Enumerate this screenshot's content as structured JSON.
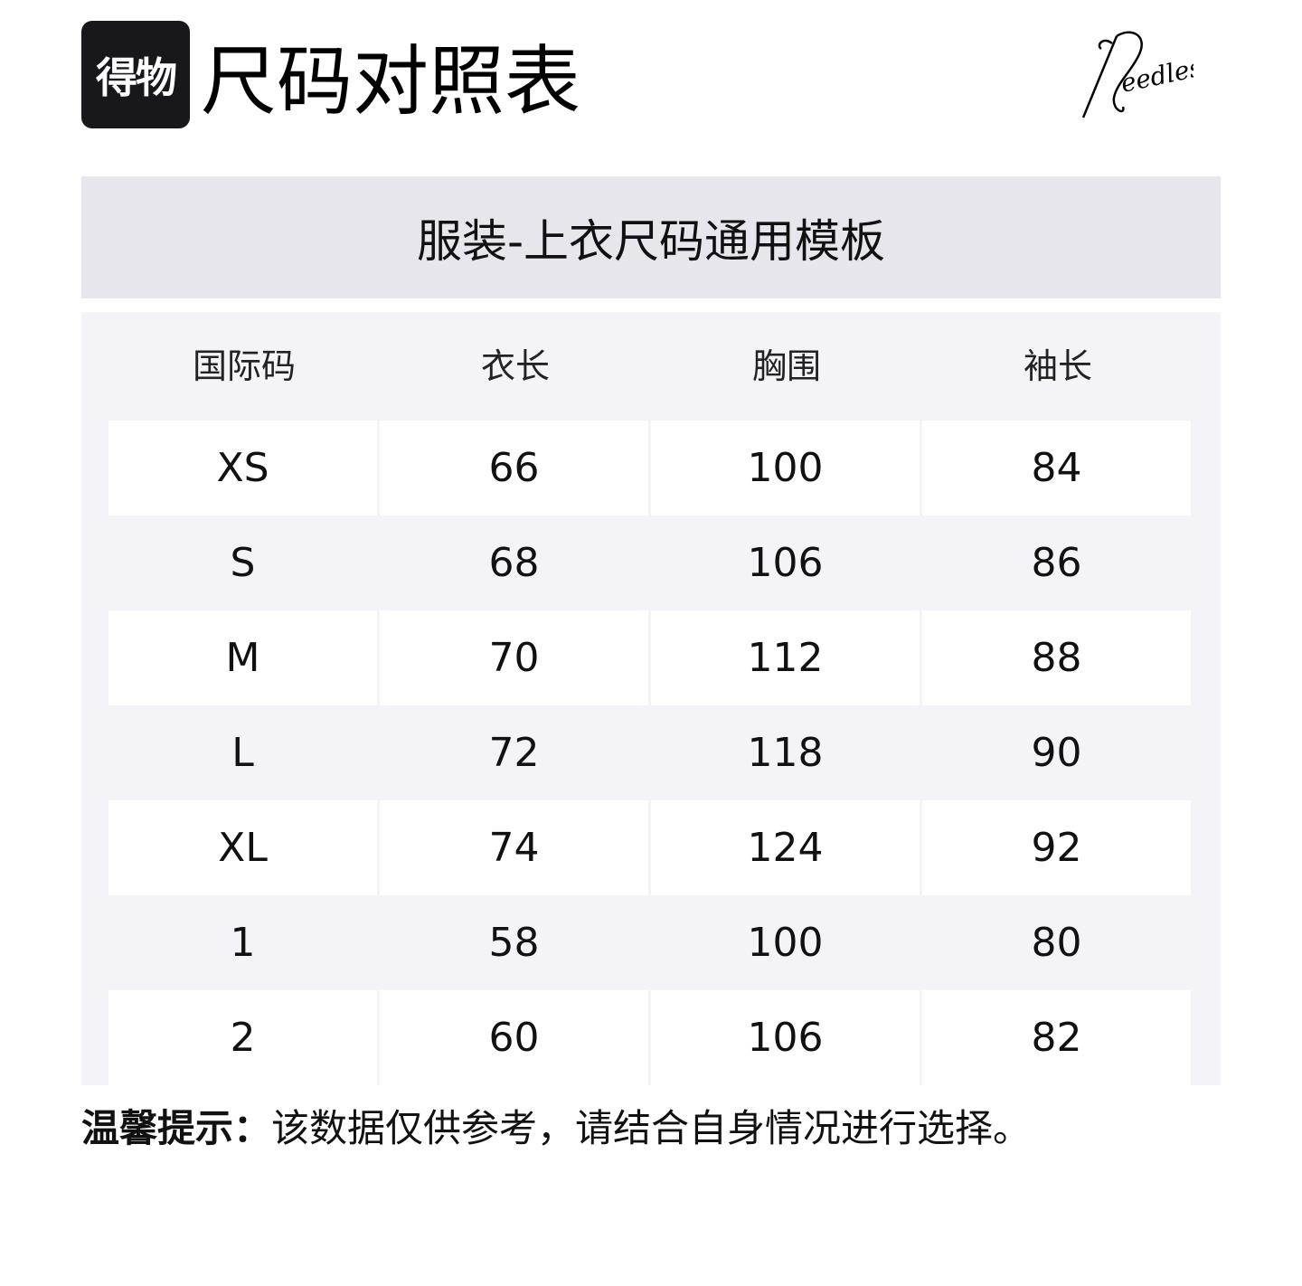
{
  "header": {
    "logo_text": "得物",
    "title": "尺码对照表",
    "brand_logo": "Needles"
  },
  "template_title": "服装-上衣尺码通用模板",
  "table": {
    "columns": [
      "国际码",
      "衣长",
      "胸围",
      "袖长"
    ],
    "rows": [
      [
        "XS",
        "66",
        "100",
        "84"
      ],
      [
        "S",
        "68",
        "106",
        "86"
      ],
      [
        "M",
        "70",
        "112",
        "88"
      ],
      [
        "L",
        "72",
        "118",
        "90"
      ],
      [
        "XL",
        "74",
        "124",
        "92"
      ],
      [
        "1",
        "58",
        "100",
        "80"
      ],
      [
        "2",
        "60",
        "106",
        "82"
      ]
    ]
  },
  "footer": {
    "label": "温馨提示：",
    "text": "该数据仅供参考，请结合自身情况进行选择。"
  }
}
